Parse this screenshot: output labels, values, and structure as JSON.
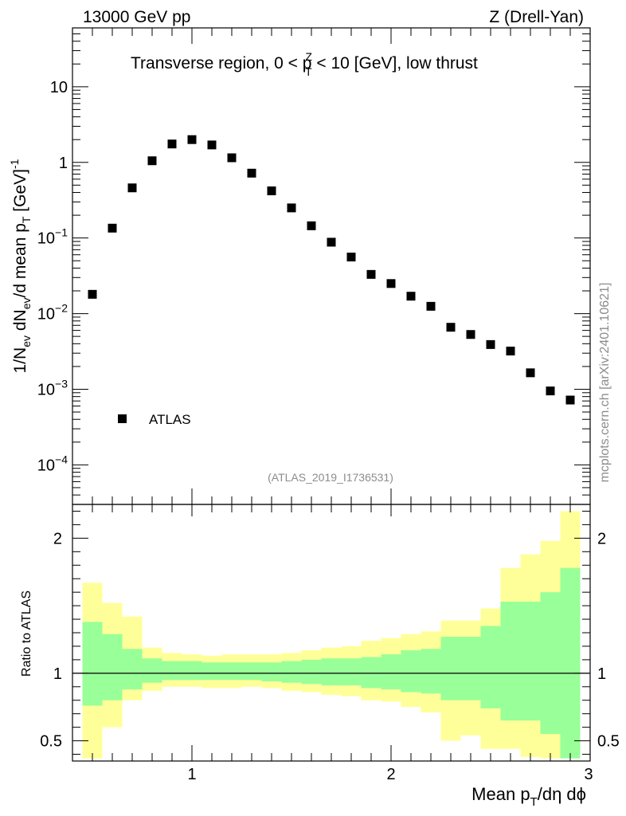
{
  "header": {
    "left": "13000 GeV pp",
    "right": "Z (Drell-Yan)"
  },
  "side_label": "mcplots.cern.ch [arXiv:2401.10621]",
  "chart_data": [
    {
      "type": "scatter",
      "title": "Transverse region, 0 < p_T^Z < 10 [GeV], low thrust",
      "title_parts": {
        "pre": "Transverse region, 0 < p",
        "sup": "Z",
        "sub": "T",
        "post": " < 10 [GeV], low thrust"
      },
      "ylabel": "1/N_ev dN_ev/d mean p_T [GeV]^-1",
      "ylabel_parts": {
        "a": "1/N",
        "b": "ev",
        "c": " dN",
        "d": "ev",
        "e": "/d mean p",
        "f": "T",
        "g": " [GeV]",
        "h": "-1"
      },
      "yscale": "log",
      "ylim": [
        3e-05,
        60
      ],
      "xlim": [
        0.4,
        3.0
      ],
      "y_ticks": [
        {
          "value": 10,
          "label": "10",
          "exp": ""
        },
        {
          "value": 1,
          "label": "1",
          "exp": ""
        },
        {
          "value": 0.1,
          "label": "10",
          "exp": "−1"
        },
        {
          "value": 0.01,
          "label": "10",
          "exp": "−2"
        },
        {
          "value": 0.001,
          "label": "10",
          "exp": "−3"
        },
        {
          "value": 0.0001,
          "label": "10",
          "exp": "−4"
        }
      ],
      "legend": {
        "label": "ATLAS",
        "position": "bottom-left"
      },
      "watermark": "(ATLAS_2019_I1736531)",
      "series": [
        {
          "name": "ATLAS",
          "marker": "square",
          "x": [
            0.5,
            0.6,
            0.7,
            0.8,
            0.9,
            1.0,
            1.1,
            1.2,
            1.3,
            1.4,
            1.5,
            1.6,
            1.7,
            1.8,
            1.9,
            2.0,
            2.1,
            2.2,
            2.3,
            2.4,
            2.5,
            2.6,
            2.7,
            2.8,
            2.9
          ],
          "y": [
            0.018,
            0.135,
            0.46,
            1.05,
            1.75,
            2.0,
            1.7,
            1.15,
            0.72,
            0.42,
            0.25,
            0.145,
            0.088,
            0.056,
            0.033,
            0.025,
            0.017,
            0.0125,
            0.0066,
            0.0053,
            0.0039,
            0.0032,
            0.00165,
            0.00095,
            0.00072
          ]
        }
      ]
    },
    {
      "type": "area",
      "ylabel": "Ratio to ATLAS",
      "xlabel": "Mean p_T/dη dϕ",
      "xlabel_parts": {
        "a": "Mean p",
        "b": "T",
        "c": "/dη dϕ"
      },
      "xlim": [
        0.4,
        3.0
      ],
      "ylim": [
        0.35,
        2.25
      ],
      "x_ticks": [
        {
          "value": 1,
          "label": "1"
        },
        {
          "value": 2,
          "label": "2"
        },
        {
          "value": 3,
          "label": "3"
        }
      ],
      "y_ticks": [
        {
          "value": 0.5,
          "label": "0.5"
        },
        {
          "value": 1,
          "label": "1"
        },
        {
          "value": 2,
          "label": "2"
        }
      ],
      "reference_line": 1.0,
      "bands": {
        "edges": [
          0.45,
          0.55,
          0.65,
          0.75,
          0.85,
          0.95,
          1.05,
          1.15,
          1.25,
          1.35,
          1.45,
          1.55,
          1.65,
          1.75,
          1.85,
          1.95,
          2.05,
          2.15,
          2.25,
          2.35,
          2.45,
          2.55,
          2.65,
          2.75,
          2.85,
          2.95
        ],
        "outer_color": "#ffff99",
        "inner_color": "#99ff99",
        "outer_up": [
          1.67,
          1.52,
          1.42,
          1.19,
          1.15,
          1.14,
          1.13,
          1.14,
          1.14,
          1.14,
          1.15,
          1.17,
          1.19,
          1.2,
          1.24,
          1.26,
          1.29,
          1.31,
          1.39,
          1.39,
          1.48,
          1.78,
          1.88,
          1.98,
          2.2
        ],
        "outer_dn": [
          0.37,
          0.6,
          0.8,
          0.87,
          0.9,
          0.9,
          0.89,
          0.89,
          0.9,
          0.89,
          0.87,
          0.86,
          0.84,
          0.83,
          0.8,
          0.79,
          0.75,
          0.71,
          0.5,
          0.54,
          0.44,
          0.44,
          0.38,
          0.37,
          0.37
        ],
        "inner_up": [
          1.38,
          1.29,
          1.18,
          1.11,
          1.09,
          1.09,
          1.08,
          1.08,
          1.08,
          1.08,
          1.09,
          1.1,
          1.11,
          1.11,
          1.12,
          1.14,
          1.17,
          1.18,
          1.27,
          1.27,
          1.35,
          1.53,
          1.53,
          1.6,
          1.78
        ],
        "inner_dn": [
          0.76,
          0.8,
          0.88,
          0.93,
          0.95,
          0.95,
          0.95,
          0.95,
          0.95,
          0.94,
          0.93,
          0.92,
          0.91,
          0.91,
          0.89,
          0.88,
          0.86,
          0.85,
          0.8,
          0.8,
          0.74,
          0.65,
          0.65,
          0.55,
          0.37
        ]
      }
    }
  ]
}
